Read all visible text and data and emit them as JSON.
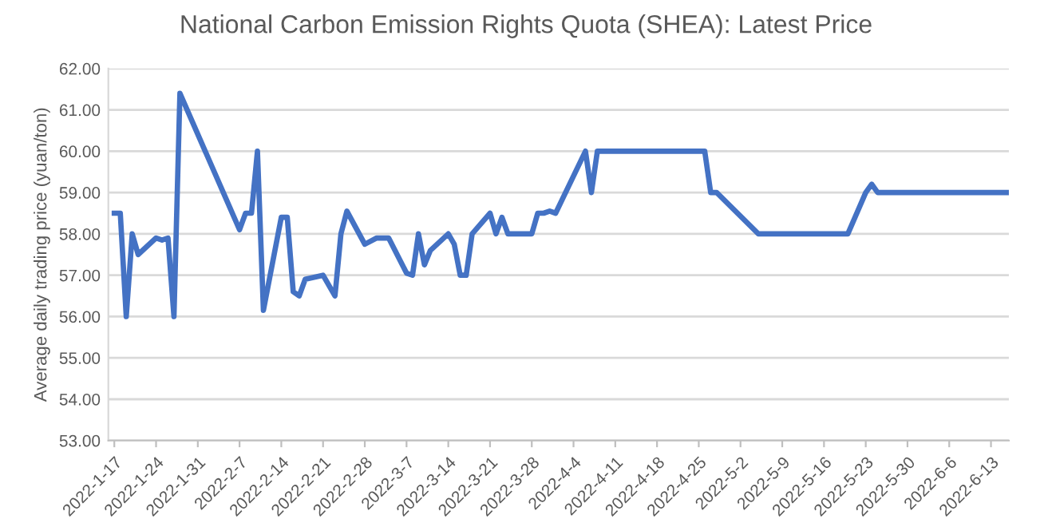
{
  "chart_data": {
    "type": "line",
    "title": "National Carbon Emission Rights Quota (SHEA): Latest Price",
    "ylabel": "Average daily trading price (yuan/ton)",
    "x": [
      "2022-01-17",
      "2022-01-18",
      "2022-01-19",
      "2022-01-20",
      "2022-01-21",
      "2022-01-24",
      "2022-01-25",
      "2022-01-26",
      "2022-01-27",
      "2022-01-28",
      "2022-02-07",
      "2022-02-08",
      "2022-02-09",
      "2022-02-10",
      "2022-02-11",
      "2022-02-14",
      "2022-02-15",
      "2022-02-16",
      "2022-02-17",
      "2022-02-18",
      "2022-02-21",
      "2022-02-23",
      "2022-02-24",
      "2022-02-25",
      "2022-02-28",
      "2022-03-02",
      "2022-03-04",
      "2022-03-07",
      "2022-03-08",
      "2022-03-09",
      "2022-03-10",
      "2022-03-11",
      "2022-03-14",
      "2022-03-15",
      "2022-03-16",
      "2022-03-17",
      "2022-03-18",
      "2022-03-21",
      "2022-03-22",
      "2022-03-23",
      "2022-03-24",
      "2022-03-28",
      "2022-03-29",
      "2022-03-30",
      "2022-03-31",
      "2022-04-01",
      "2022-04-06",
      "2022-04-07",
      "2022-04-08",
      "2022-04-26",
      "2022-04-27",
      "2022-04-28",
      "2022-05-05",
      "2022-05-20",
      "2022-05-23",
      "2022-05-24",
      "2022-05-25",
      "2022-06-16"
    ],
    "series": [
      {
        "color": "#4472c4",
        "values": [
          58.5,
          58.5,
          56.0,
          58.0,
          57.5,
          57.9,
          57.85,
          57.9,
          56.0,
          61.4,
          58.1,
          58.5,
          58.5,
          60.0,
          56.15,
          58.4,
          58.4,
          56.6,
          56.5,
          56.9,
          57.0,
          56.5,
          58.0,
          58.55,
          57.75,
          57.9,
          57.9,
          57.05,
          57.0,
          58.0,
          57.25,
          57.6,
          58.0,
          57.75,
          57.0,
          57.0,
          58.0,
          58.5,
          58.0,
          58.4,
          58.0,
          58.0,
          58.5,
          58.5,
          58.55,
          58.5,
          60.0,
          59.0,
          60.0,
          60.0,
          59.0,
          59.0,
          58.0,
          58.0,
          59.0,
          59.2,
          59.0,
          59.0
        ]
      }
    ],
    "xlim": [
      "2022-01-16",
      "2022-06-16"
    ],
    "xticks": [
      {
        "value": "2022-01-17",
        "label": "2022-1-17"
      },
      {
        "value": "2022-01-24",
        "label": "2022-1-24"
      },
      {
        "value": "2022-01-31",
        "label": "2022-1-31"
      },
      {
        "value": "2022-02-07",
        "label": "2022-2-7"
      },
      {
        "value": "2022-02-14",
        "label": "2022-2-14"
      },
      {
        "value": "2022-02-21",
        "label": "2022-2-21"
      },
      {
        "value": "2022-02-28",
        "label": "2022-2-28"
      },
      {
        "value": "2022-03-07",
        "label": "2022-3-7"
      },
      {
        "value": "2022-03-14",
        "label": "2022-3-14"
      },
      {
        "value": "2022-03-21",
        "label": "2022-3-21"
      },
      {
        "value": "2022-03-28",
        "label": "2022-3-28"
      },
      {
        "value": "2022-04-04",
        "label": "2022-4-4"
      },
      {
        "value": "2022-04-11",
        "label": "2022-4-11"
      },
      {
        "value": "2022-04-18",
        "label": "2022-4-18"
      },
      {
        "value": "2022-04-25",
        "label": "2022-4-25"
      },
      {
        "value": "2022-05-02",
        "label": "2022-5-2"
      },
      {
        "value": "2022-05-09",
        "label": "2022-5-9"
      },
      {
        "value": "2022-05-16",
        "label": "2022-5-16"
      },
      {
        "value": "2022-05-23",
        "label": "2022-5-23"
      },
      {
        "value": "2022-05-30",
        "label": "2022-5-30"
      },
      {
        "value": "2022-06-06",
        "label": "2022-6-6"
      },
      {
        "value": "2022-06-13",
        "label": "2022-6-13"
      }
    ],
    "ylim": [
      53,
      62
    ],
    "yticks": [
      {
        "value": 53,
        "label": "53.00"
      },
      {
        "value": 54,
        "label": "54.00"
      },
      {
        "value": 55,
        "label": "55.00"
      },
      {
        "value": 56,
        "label": "56.00"
      },
      {
        "value": 57,
        "label": "57.00"
      },
      {
        "value": 58,
        "label": "58.00"
      },
      {
        "value": 59,
        "label": "59.00"
      },
      {
        "value": 60,
        "label": "60.00"
      },
      {
        "value": 61,
        "label": "61.00"
      },
      {
        "value": 62,
        "label": "62.00"
      }
    ],
    "grid": "y",
    "marker": "none",
    "line_style": "solid"
  }
}
